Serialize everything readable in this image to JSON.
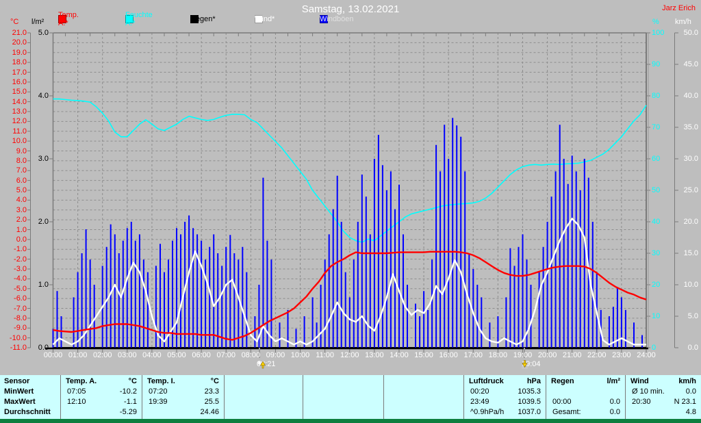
{
  "window": {
    "title": "Samstag, 13.02.2021",
    "station_name": "Jarz Erich"
  },
  "legend": [
    {
      "label": "Temp. A.*",
      "swatch": "#ff0000",
      "text_color": "#ff0000"
    },
    {
      "label": "Feuchte A.*",
      "swatch": "#00ffff",
      "text_color": "#00ffff"
    },
    {
      "label": "Regen*",
      "swatch": "#000000",
      "text_color": "#000000"
    },
    {
      "label": "Wind*",
      "swatch": "#ffffff",
      "text_color": "#ffffff"
    },
    {
      "label": "Windböen",
      "swatch": "#0000ff",
      "text_color": "#e0e0e0"
    }
  ],
  "axes": {
    "temp": {
      "unit": "°C",
      "min": -11,
      "max": 21,
      "step": 1,
      "decimals": 1,
      "color": "#ff0000"
    },
    "rain": {
      "unit": "l/m²",
      "min": 0,
      "max": 5,
      "step": 1,
      "decimals": 1,
      "color": "#000000"
    },
    "humidity": {
      "unit": "%",
      "min": 0,
      "max": 100,
      "step": 10,
      "decimals": 0,
      "color": "#00ffff"
    },
    "wind": {
      "unit": "km/h",
      "min": 0,
      "max": 50,
      "step": 5,
      "decimals": 1,
      "color": "#ffffff"
    }
  },
  "markers": {
    "sunrise": {
      "label": "08:21",
      "hour": 8.35
    },
    "sunset": {
      "label": "19:04",
      "hour": 19.07
    }
  },
  "chart_data": {
    "type": "line",
    "title": "Samstag, 13.02.2021",
    "x_axis": {
      "start_h": 0,
      "end_h": 24,
      "label_step_h": 1,
      "hour_labels": [
        "00:00",
        "01:00",
        "02:00",
        "03:00",
        "04:00",
        "05:00",
        "06:00",
        "07:00",
        "08:00",
        "09:00",
        "10:00",
        "11:00",
        "12:00",
        "13:00",
        "14:00",
        "15:00",
        "16:00",
        "17:00",
        "18:00",
        "19:00",
        "20:00",
        "21:00",
        "22:00",
        "23:00",
        "24:00"
      ]
    },
    "grid": {
      "h_step_temp_axis": 1,
      "v_step_hours": 1,
      "style": "dashed"
    },
    "series": [
      {
        "name": "Temp. A.",
        "unit": "°C",
        "axis": "temp",
        "color": "#ff0000",
        "width": 2.4,
        "x_step_h": 0.25,
        "values": [
          -9.2,
          -9.3,
          -9.35,
          -9.4,
          -9.3,
          -9.2,
          -9.1,
          -9.0,
          -8.8,
          -8.7,
          -8.6,
          -8.6,
          -8.6,
          -8.7,
          -8.8,
          -9.0,
          -9.2,
          -9.4,
          -9.5,
          -9.5,
          -9.6,
          -9.6,
          -9.6,
          -9.6,
          -9.7,
          -9.7,
          -9.7,
          -9.9,
          -10.1,
          -10.2,
          -10.0,
          -9.8,
          -9.5,
          -9.1,
          -8.7,
          -8.3,
          -8.0,
          -7.7,
          -7.4,
          -7.0,
          -6.4,
          -5.8,
          -5.0,
          -4.3,
          -3.4,
          -2.7,
          -2.3,
          -2.0,
          -1.6,
          -1.3,
          -1.4,
          -1.4,
          -1.4,
          -1.4,
          -1.4,
          -1.35,
          -1.3,
          -1.3,
          -1.3,
          -1.3,
          -1.3,
          -1.25,
          -1.25,
          -1.25,
          -1.25,
          -1.25,
          -1.3,
          -1.4,
          -1.6,
          -1.9,
          -2.3,
          -2.7,
          -3.1,
          -3.4,
          -3.6,
          -3.7,
          -3.7,
          -3.6,
          -3.4,
          -3.2,
          -3.0,
          -2.85,
          -2.75,
          -2.7,
          -2.7,
          -2.7,
          -2.75,
          -3.0,
          -3.4,
          -3.9,
          -4.4,
          -4.8,
          -5.1,
          -5.4,
          -5.6,
          -5.9,
          -6.1
        ]
      },
      {
        "name": "Feuchte A.",
        "unit": "%",
        "axis": "humidity",
        "color": "#00ffff",
        "width": 1.6,
        "x_step_h": 0.25,
        "values": [
          79,
          79,
          78.8,
          78.6,
          78.5,
          78.3,
          78,
          76.5,
          74.5,
          72,
          68.5,
          67,
          67,
          69,
          71,
          72.4,
          71,
          69.5,
          69,
          70,
          71,
          72.5,
          73.5,
          73,
          72.5,
          72.2,
          72.5,
          73.2,
          73.8,
          74.1,
          74.1,
          74,
          72.5,
          71.5,
          69.5,
          67.5,
          65.5,
          63.5,
          61,
          58.5,
          56,
          53.5,
          50,
          47.5,
          45,
          42.5,
          40,
          37,
          35,
          34,
          33.5,
          34.5,
          34,
          35.5,
          37,
          38.5,
          40,
          41.5,
          42.5,
          43,
          43.5,
          44,
          44.5,
          45,
          45.3,
          45.5,
          45.7,
          45.8,
          46,
          46.5,
          47.5,
          49,
          51,
          53,
          55,
          56.5,
          57.5,
          58,
          58.2,
          58,
          58.2,
          58.3,
          58.2,
          58.4,
          58.5,
          58.6,
          59,
          59.5,
          60.5,
          61.5,
          63,
          65,
          67,
          69.5,
          72,
          74,
          77
        ]
      },
      {
        "name": "Regen",
        "unit": "l/m²",
        "axis": "rain",
        "color": "#000000",
        "width": 2,
        "x_step_h": 12,
        "values": [
          0,
          0,
          0
        ]
      },
      {
        "name": "Wind",
        "unit": "km/h",
        "axis": "wind",
        "color": "#ffffff",
        "width": 2.4,
        "x_step_h": 0.25,
        "values": [
          0.5,
          1.5,
          1,
          0.5,
          1,
          2,
          3.5,
          5,
          6.5,
          8,
          10,
          8,
          11,
          13.5,
          12,
          9,
          5,
          2,
          1,
          2.5,
          4,
          8,
          12,
          15.3,
          13,
          10.2,
          6.6,
          8,
          10,
          10.8,
          8,
          5,
          2,
          1,
          3.4,
          2,
          1,
          1.5,
          1,
          0.5,
          1,
          0.5,
          1,
          2,
          3,
          5,
          7.2,
          5.5,
          4.5,
          4.1,
          5,
          3.5,
          2.7,
          5,
          8,
          11.7,
          9,
          6.5,
          5.2,
          6,
          5.5,
          7,
          9.8,
          8.5,
          11,
          13.9,
          12,
          8.5,
          5.5,
          3,
          1.5,
          1,
          0.8,
          1.5,
          1,
          0.5,
          1,
          3,
          6,
          9.9,
          12,
          14.5,
          17,
          19,
          20.5,
          19.5,
          17.5,
          10,
          5.5,
          1.2,
          0.5,
          1,
          1.5,
          1,
          0.5,
          0.5,
          0.5
        ]
      },
      {
        "name": "Windböen",
        "unit": "km/h",
        "axis": "wind",
        "color": "#0000ff",
        "width": 2,
        "style": "spikes",
        "x_step_h": 0.16667,
        "values": [
          3,
          9,
          5,
          0,
          0,
          8,
          12,
          15,
          18.8,
          14,
          10,
          0,
          13,
          16,
          19.6,
          18,
          15,
          17,
          19,
          20,
          17,
          18,
          14,
          12,
          0,
          13,
          16.5,
          12,
          14,
          17,
          19,
          18,
          20,
          21,
          19,
          18,
          17,
          14,
          16,
          18,
          15,
          13,
          16,
          17.9,
          15,
          14,
          16,
          12,
          0,
          5,
          10,
          27,
          17,
          14,
          0,
          4,
          0,
          6,
          0,
          3,
          0,
          5,
          0,
          8,
          4,
          10,
          14,
          18,
          22,
          27.3,
          20,
          12,
          8,
          14,
          20,
          27.5,
          24,
          18,
          30,
          33.8,
          29,
          25,
          28,
          22,
          25.9,
          18,
          10,
          0,
          7,
          5,
          9,
          6,
          14,
          32.2,
          28,
          35.4,
          30,
          36.5,
          35.3,
          33.5,
          28,
          15,
          12.5,
          10,
          8,
          0,
          4,
          0,
          5,
          0,
          8,
          15.8,
          13,
          16,
          18,
          14,
          10,
          0,
          12,
          16,
          20,
          24,
          28,
          35.4,
          30,
          26,
          30.5,
          28,
          25,
          30,
          27,
          20,
          12,
          6,
          0,
          5,
          6.5,
          9.5,
          8,
          6,
          0,
          4,
          0,
          2,
          0
        ]
      }
    ]
  },
  "table": {
    "row_labels": [
      "Sensor",
      "MinWert",
      "MaxWert",
      "Durchschnitt"
    ],
    "columns": [
      {
        "name": "Temp. A.",
        "unit": "°C",
        "rows": [
          [
            "07:05",
            "-10.2"
          ],
          [
            "12:10",
            "-1.1"
          ],
          [
            "",
            "-5.29"
          ]
        ]
      },
      {
        "name": "Temp. I.",
        "unit": "°C",
        "rows": [
          [
            "07:20",
            "23.3"
          ],
          [
            "19:39",
            "25.5"
          ],
          [
            "",
            "24.46"
          ]
        ]
      },
      {
        "name": "",
        "unit": "",
        "rows": [
          [
            "",
            ""
          ],
          [
            "",
            ""
          ],
          [
            "",
            ""
          ]
        ]
      },
      {
        "name": "",
        "unit": "",
        "rows": [
          [
            "",
            ""
          ],
          [
            "",
            ""
          ],
          [
            "",
            ""
          ]
        ]
      },
      {
        "name": "",
        "unit": "",
        "rows": [
          [
            "",
            ""
          ],
          [
            "",
            ""
          ],
          [
            "",
            ""
          ]
        ]
      },
      {
        "name": "Luftdruck",
        "unit": "hPa",
        "rows": [
          [
            "00:20",
            "1035.3"
          ],
          [
            "23:49",
            "1039.5"
          ],
          [
            "^0.9hPa/h",
            "1037.0"
          ]
        ]
      },
      {
        "name": "Regen",
        "unit": "l/m²",
        "rows": [
          [
            "",
            ""
          ],
          [
            "00:00",
            "0.0"
          ],
          [
            "Gesamt:",
            "0.0"
          ]
        ]
      },
      {
        "name": "Wind",
        "unit": "km/h",
        "rows": [
          [
            "Ø 10 min.",
            "0.0"
          ],
          [
            "20:30",
            "N 23.1"
          ],
          [
            "",
            "4.8"
          ]
        ]
      }
    ],
    "background": "#ccffff",
    "bottom_bar_color": "#0d7f3f"
  }
}
